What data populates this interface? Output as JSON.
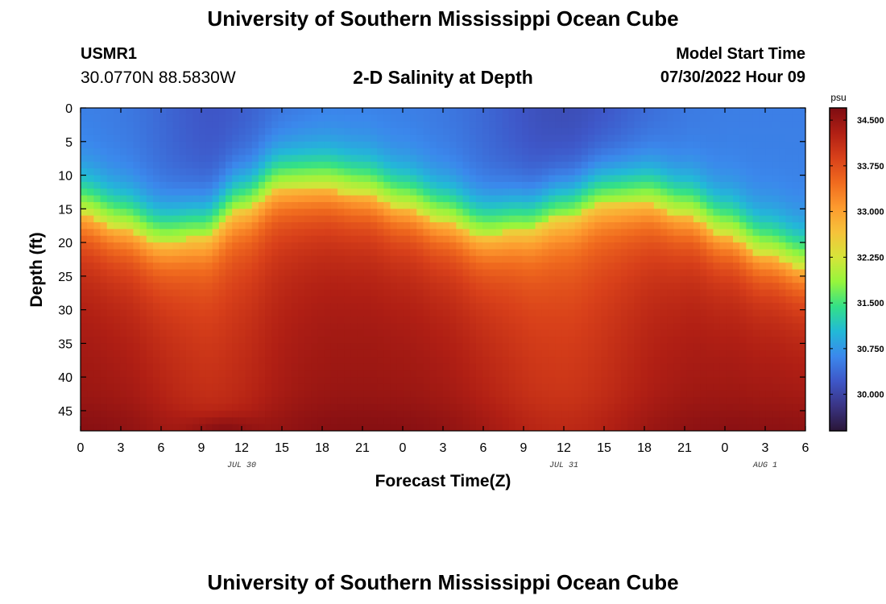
{
  "header": {
    "title": "University of Southern Mississippi Ocean Cube",
    "station": "USMR1",
    "coords": "30.0770N  88.5830W",
    "subtitle": "2-D Salinity at Depth",
    "model_start_label": "Model Start Time",
    "model_start_value": "07/30/2022 Hour 09"
  },
  "footer": {
    "title": "University of Southern Mississippi Ocean Cube"
  },
  "chart_data": {
    "type": "heatmap",
    "title": "2-D Salinity at Depth",
    "xlabel": "Forecast Time(Z)",
    "ylabel": "Depth (ft)",
    "x_hours_range": [
      0,
      54
    ],
    "x_tick_labels": [
      "0",
      "3",
      "6",
      "9",
      "12",
      "15",
      "18",
      "21",
      "0",
      "3",
      "6",
      "9",
      "12",
      "15",
      "18",
      "21",
      "0",
      "3",
      "6"
    ],
    "date_labels": [
      {
        "text": "JUL 30",
        "hour": 12
      },
      {
        "text": "JUL 31",
        "hour": 36
      },
      {
        "text": "AUG 1",
        "hour": 51
      }
    ],
    "y_range": [
      0,
      48
    ],
    "y_ticks": [
      0,
      5,
      10,
      15,
      20,
      25,
      30,
      35,
      40,
      45
    ],
    "colorbar": {
      "unit": "psu",
      "range": [
        29.4,
        34.7
      ],
      "tick_labels": [
        "34.500",
        "33.750",
        "33.000",
        "32.250",
        "31.500",
        "30.750",
        "30.000"
      ],
      "tick_values": [
        34.5,
        33.75,
        33.0,
        32.25,
        31.5,
        30.75,
        30.0
      ],
      "colors": [
        "#2a1637",
        "#3a3484",
        "#3e57c8",
        "#3b88ec",
        "#22b9d7",
        "#33e088",
        "#96f53c",
        "#d6e43a",
        "#f6c23a",
        "#fd9a2e",
        "#f06a1e",
        "#d8401a",
        "#b01f14",
        "#7e0c12"
      ]
    },
    "halocline": {
      "description": "depth (ft) of the halocline over forecast hours",
      "hours": [
        0,
        3,
        6,
        9,
        12,
        15,
        18,
        21,
        24,
        27,
        30,
        33,
        36,
        39,
        42,
        45,
        48,
        51,
        54
      ],
      "depth_ft": [
        14,
        16,
        18,
        17,
        13,
        10,
        10,
        11,
        13,
        15,
        17,
        16,
        14,
        12,
        12,
        14,
        17,
        20,
        22
      ]
    }
  }
}
